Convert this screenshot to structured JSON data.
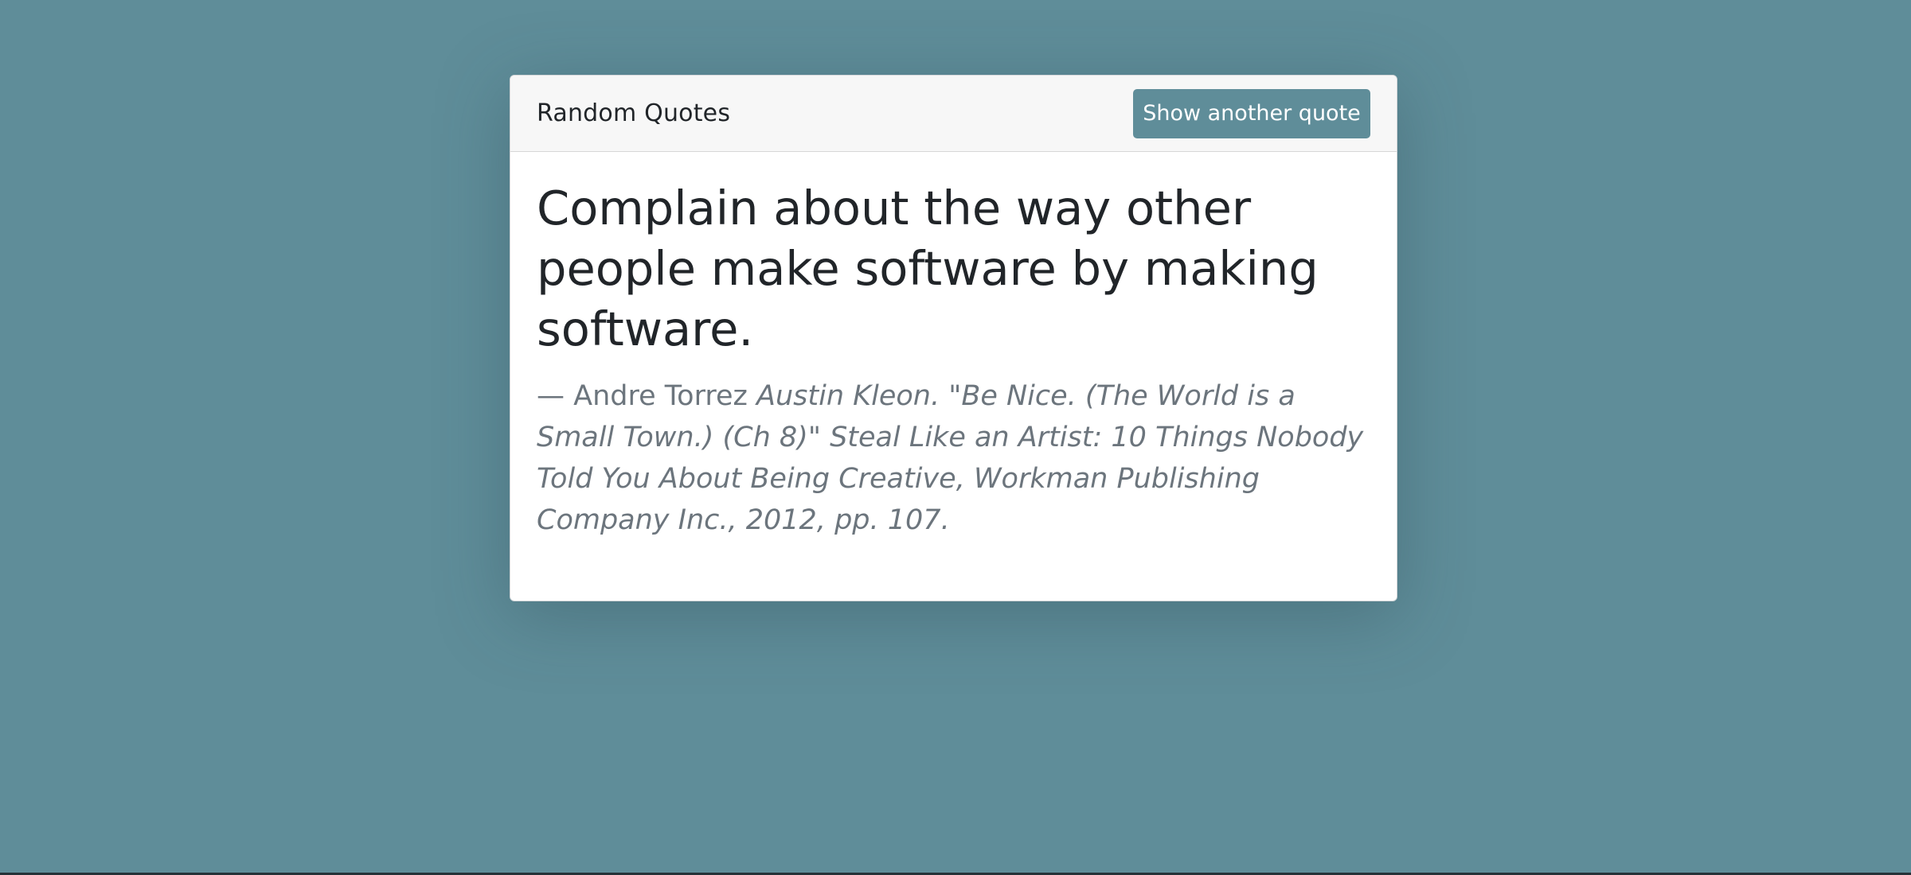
{
  "app": {
    "title": "Random Quotes"
  },
  "actions": {
    "next_quote_label": "Show another quote"
  },
  "quote": {
    "text": "Complain about the way other people make software by making software.",
    "attribution_prefix": "— Andre Torrez",
    "source": "Austin Kleon. \"Be Nice. (The World is a Small Town.) (Ch 8)\" Steal Like an Artist: 10 Things Nobody Told You About Being Creative, Workman Publishing Company Inc., 2012, pp. 107."
  },
  "colors": {
    "background": "#5f8d99",
    "button": "#5f8d99",
    "card": "#ffffff",
    "header": "#f7f7f7",
    "quote_text": "#212529",
    "attribution_text": "#6c757d"
  }
}
